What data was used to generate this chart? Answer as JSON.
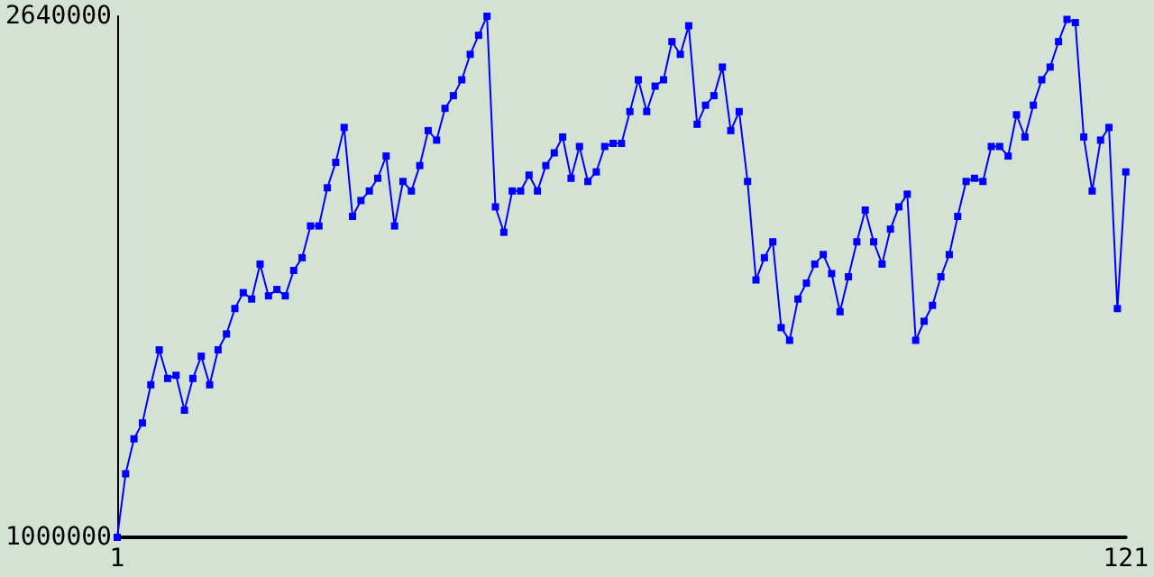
{
  "chart_data": {
    "type": "line",
    "xlim": [
      1,
      121
    ],
    "xticks": [
      1,
      121
    ],
    "ylim": [
      1000000,
      2640000
    ],
    "yticks": [
      {
        "value": 1000000,
        "label": "1000000"
      },
      {
        "value": 2640000,
        "label": "2640000"
      }
    ],
    "grid": false,
    "marker": "square",
    "line_style": "solid",
    "x": [
      1,
      2,
      3,
      4,
      5,
      6,
      7,
      8,
      9,
      10,
      11,
      12,
      13,
      14,
      15,
      16,
      17,
      18,
      19,
      20,
      21,
      22,
      23,
      24,
      25,
      26,
      27,
      28,
      29,
      30,
      31,
      32,
      33,
      34,
      35,
      36,
      37,
      38,
      39,
      40,
      41,
      42,
      43,
      44,
      45,
      46,
      47,
      48,
      49,
      50,
      51,
      52,
      53,
      54,
      55,
      56,
      57,
      58,
      59,
      60,
      61,
      62,
      63,
      64,
      65,
      66,
      67,
      68,
      69,
      70,
      71,
      72,
      73,
      74,
      75,
      76,
      77,
      78,
      79,
      80,
      81,
      82,
      83,
      84,
      85,
      86,
      87,
      88,
      89,
      90,
      91,
      92,
      93,
      94,
      95,
      96,
      97,
      98,
      99,
      100,
      101,
      102,
      103,
      104,
      105,
      106,
      107,
      108,
      109,
      110,
      111,
      112,
      113,
      114,
      115,
      116,
      117,
      118,
      119,
      120,
      121
    ],
    "series": [
      {
        "color": "#0000ff",
        "values": [
          1000000,
          1200000,
          1310000,
          1360000,
          1480000,
          1590000,
          1500000,
          1510000,
          1400000,
          1500000,
          1570000,
          1480000,
          1590000,
          1640000,
          1720000,
          1770000,
          1750000,
          1860000,
          1760000,
          1780000,
          1760000,
          1840000,
          1880000,
          1980000,
          1980000,
          2100000,
          2180000,
          2290000,
          2010000,
          2060000,
          2090000,
          2130000,
          2200000,
          1980000,
          2120000,
          2090000,
          2170000,
          2280000,
          2250000,
          2350000,
          2390000,
          2440000,
          2520000,
          2580000,
          2640000,
          2040000,
          1960000,
          2090000,
          2090000,
          2140000,
          2090000,
          2170000,
          2210000,
          2260000,
          2130000,
          2230000,
          2120000,
          2150000,
          2230000,
          2240000,
          2240000,
          2340000,
          2440000,
          2340000,
          2420000,
          2440000,
          2560000,
          2520000,
          2610000,
          2300000,
          2360000,
          2390000,
          2480000,
          2280000,
          2340000,
          2120000,
          1810000,
          1880000,
          1930000,
          1660000,
          1620000,
          1750000,
          1800000,
          1860000,
          1890000,
          1830000,
          1710000,
          1820000,
          1930000,
          2030000,
          1930000,
          1860000,
          1970000,
          2040000,
          2080000,
          1620000,
          1680000,
          1730000,
          1820000,
          1890000,
          2010000,
          2120000,
          2130000,
          2120000,
          2230000,
          2230000,
          2200000,
          2330000,
          2260000,
          2360000,
          2440000,
          2480000,
          2560000,
          2630000,
          2620000,
          2260000,
          2090000,
          2250000,
          2290000,
          1720000,
          2150000
        ]
      }
    ]
  }
}
